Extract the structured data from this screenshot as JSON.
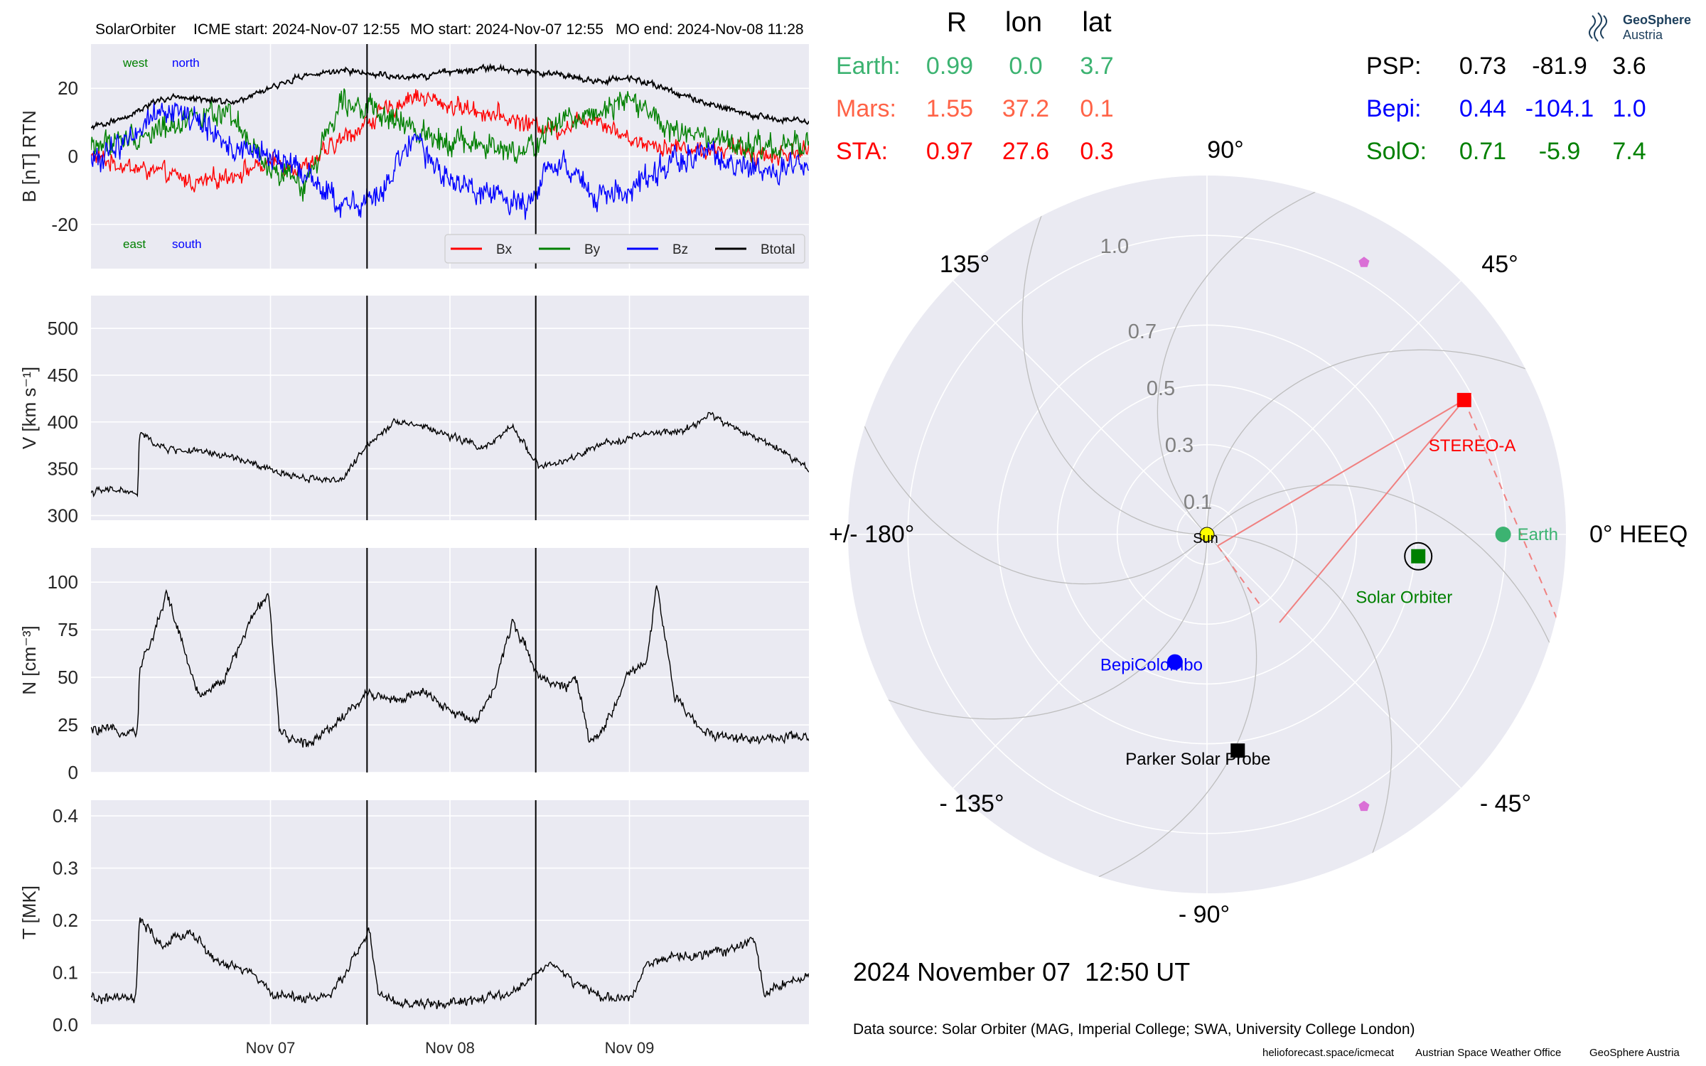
{
  "header": {
    "spacecraft": "SolarOrbiter",
    "icme_start": "ICME start: 2024-Nov-07 12:55",
    "mo_start": "MO start: 2024-Nov-07 12:55",
    "mo_end": "MO end: 2024-Nov-08 11:28"
  },
  "logo": {
    "line1": "GeoSphere",
    "line2": "Austria"
  },
  "positions": {
    "columns": [
      "R",
      "lon",
      "lat"
    ],
    "left": [
      {
        "name": "Earth:",
        "R": "0.99",
        "lon": "0.0",
        "lat": "3.7",
        "color": "#3cb371"
      },
      {
        "name": "Mars:",
        "R": "1.55",
        "lon": "37.2",
        "lat": "0.1",
        "color": "#ff6347"
      },
      {
        "name": "STA:",
        "R": "0.97",
        "lon": "27.6",
        "lat": "0.3",
        "color": "#ff0000"
      }
    ],
    "right": [
      {
        "name": "PSP:",
        "R": "0.73",
        "lon": "-81.9",
        "lat": "3.6",
        "color": "#000000"
      },
      {
        "name": "Bepi:",
        "R": "0.44",
        "lon": "-104.1",
        "lat": "1.0",
        "color": "#0000ff"
      },
      {
        "name": "SolO:",
        "R": "0.71",
        "lon": "-5.9",
        "lat": "7.4",
        "color": "#008000"
      }
    ]
  },
  "date_label": "2024 November 07  12:50 UT",
  "data_source": "Data source: Solar Orbiter (MAG, Imperial College; SWA, University College London)",
  "credits": [
    "helioforecast.space/icmecat",
    "Austrian Space Weather Office",
    "GeoSphere Austria"
  ],
  "chart_data": [
    {
      "type": "line",
      "panel": "magnetic_field",
      "ylabel": "B [nT] RTN",
      "ylim": [
        -33,
        33
      ],
      "yticks": [
        -20,
        0,
        20
      ],
      "xlim_days": [
        6.0,
        10.0
      ],
      "xtick_positions_days": [
        7,
        8,
        9
      ],
      "xtick_labels": [
        "Nov 07",
        "Nov 08",
        "Nov 09"
      ],
      "vlines_days": [
        7.538,
        8.478
      ],
      "grid": true,
      "legend": "bottom-right",
      "annotations": {
        "top_left": "west",
        "top_right": "north",
        "bottom_left": "east",
        "bottom_right": "south"
      },
      "x_days": [
        6.0,
        6.2,
        6.4,
        6.6,
        6.8,
        7.0,
        7.2,
        7.4,
        7.6,
        7.8,
        8.0,
        8.2,
        8.4,
        8.6,
        8.8,
        9.0,
        9.2,
        9.4,
        9.6,
        9.8,
        10.0
      ],
      "series": [
        {
          "name": "Bx",
          "color": "#ff0000",
          "noise": 3.5,
          "values": [
            0,
            -3,
            -5,
            -8,
            -5,
            -2,
            -3,
            5,
            12,
            18,
            15,
            13,
            10,
            8,
            12,
            5,
            3,
            2,
            2,
            0,
            2
          ]
        },
        {
          "name": "By",
          "color": "#008000",
          "noise": 5,
          "values": [
            3,
            5,
            8,
            13,
            10,
            -5,
            -8,
            18,
            12,
            8,
            5,
            3,
            0,
            10,
            13,
            18,
            8,
            5,
            3,
            2,
            4
          ]
        },
        {
          "name": "Bz",
          "color": "#0000ff",
          "noise": 5,
          "values": [
            -2,
            5,
            15,
            10,
            2,
            0,
            -5,
            -15,
            -12,
            5,
            -8,
            -10,
            -15,
            0,
            -12,
            -10,
            -3,
            2,
            -3,
            -5,
            -3
          ]
        },
        {
          "name": "Btotal",
          "color": "#000000",
          "noise": 1.2,
          "values": [
            8,
            12,
            17,
            17,
            16,
            20,
            24,
            25,
            24,
            23,
            25,
            26,
            25,
            24,
            22,
            23,
            20,
            16,
            13,
            11,
            10
          ]
        }
      ]
    },
    {
      "type": "line",
      "panel": "velocity",
      "ylabel": "V [km s⁻¹]",
      "ylim": [
        295,
        535
      ],
      "yticks": [
        300,
        350,
        400,
        450,
        500
      ],
      "xlim_days": [
        6.0,
        10.0
      ],
      "xtick_positions_days": [
        7,
        8,
        9
      ],
      "vlines_days": [
        7.538,
        8.478
      ],
      "grid": true,
      "x_days": [
        6.0,
        6.15,
        6.26,
        6.27,
        6.4,
        6.6,
        6.8,
        7.0,
        7.2,
        7.4,
        7.55,
        7.7,
        7.85,
        8.0,
        8.2,
        8.35,
        8.5,
        8.65,
        8.8,
        9.0,
        9.15,
        9.3,
        9.45,
        9.6,
        9.8,
        10.0
      ],
      "series": [
        {
          "name": "V",
          "color": "#000000",
          "noise": 5,
          "values": [
            325,
            328,
            322,
            388,
            372,
            368,
            362,
            348,
            340,
            338,
            378,
            402,
            395,
            385,
            372,
            395,
            352,
            358,
            372,
            384,
            388,
            390,
            408,
            392,
            375,
            350
          ]
        }
      ]
    },
    {
      "type": "line",
      "panel": "density",
      "ylabel": "N [cm⁻³]",
      "ylim": [
        0,
        118
      ],
      "yticks": [
        0,
        25,
        50,
        75,
        100
      ],
      "xlim_days": [
        6.0,
        10.0
      ],
      "xtick_positions_days": [
        7,
        8,
        9
      ],
      "vlines_days": [
        7.538,
        8.478
      ],
      "grid": true,
      "x_days": [
        6.0,
        6.26,
        6.27,
        6.35,
        6.42,
        6.5,
        6.6,
        6.75,
        6.9,
        6.99,
        7.05,
        7.2,
        7.35,
        7.55,
        7.7,
        7.85,
        8.0,
        8.15,
        8.25,
        8.35,
        8.5,
        8.65,
        8.7,
        8.78,
        8.85,
        9.0,
        9.1,
        9.15,
        9.25,
        9.4,
        9.6,
        9.8,
        10.0
      ],
      "series": [
        {
          "name": "N",
          "color": "#000000",
          "noise": 3.5,
          "values": [
            22,
            22,
            55,
            72,
            95,
            70,
            40,
            50,
            82,
            95,
            20,
            15,
            25,
            42,
            38,
            42,
            32,
            28,
            45,
            80,
            50,
            45,
            50,
            15,
            22,
            52,
            58,
            100,
            40,
            22,
            18,
            18,
            18
          ]
        }
      ]
    },
    {
      "type": "line",
      "panel": "temperature",
      "ylabel": "T [MK]",
      "ylim": [
        0,
        0.43
      ],
      "yticks": [
        0.0,
        0.1,
        0.2,
        0.3,
        0.4
      ],
      "xlim_days": [
        6.0,
        10.0
      ],
      "xtick_positions_days": [
        7,
        8,
        9
      ],
      "xtick_labels": [
        "Nov 07",
        "Nov 08",
        "Nov 09"
      ],
      "vlines_days": [
        7.538,
        8.478
      ],
      "grid": true,
      "x_days": [
        6.0,
        6.25,
        6.27,
        6.4,
        6.55,
        6.7,
        6.9,
        7.0,
        7.2,
        7.35,
        7.45,
        7.55,
        7.6,
        7.7,
        8.0,
        8.2,
        8.35,
        8.45,
        8.55,
        8.7,
        8.85,
        9.0,
        9.1,
        9.3,
        9.5,
        9.7,
        9.75,
        9.85,
        10.0
      ],
      "series": [
        {
          "name": "T",
          "color": "#000000",
          "noise": 0.012,
          "values": [
            0.05,
            0.05,
            0.2,
            0.15,
            0.18,
            0.12,
            0.1,
            0.06,
            0.05,
            0.06,
            0.12,
            0.18,
            0.06,
            0.04,
            0.04,
            0.05,
            0.06,
            0.09,
            0.12,
            0.08,
            0.05,
            0.05,
            0.12,
            0.13,
            0.14,
            0.16,
            0.06,
            0.08,
            0.09
          ]
        }
      ]
    },
    {
      "type": "polar",
      "panel": "orbit_positions",
      "frame_label_0": "0° HEEQ",
      "angle_labels": [
        {
          "deg": 90,
          "text": "90°"
        },
        {
          "deg": 45,
          "text": "45°"
        },
        {
          "deg": 135,
          "text": "135°"
        },
        {
          "deg": 180,
          "text": "+/- 180°"
        },
        {
          "deg": 0,
          "text": "0° HEEQ"
        },
        {
          "deg": -45,
          "text": "- 45°"
        },
        {
          "deg": -90,
          "text": "- 90°"
        },
        {
          "deg": -135,
          "text": "- 135°"
        }
      ],
      "radial_labels": [
        "0.1",
        "0.3",
        "0.5",
        "0.7",
        "1.0"
      ],
      "radial_values": [
        0.1,
        0.3,
        0.5,
        0.7,
        1.0
      ],
      "rmax": 1.2,
      "bodies": [
        {
          "name": "Sun",
          "r": 0.0,
          "lon": 0,
          "color": "#ffff00",
          "marker": "circle"
        },
        {
          "name": "Earth",
          "r": 0.99,
          "lon": 0.0,
          "color": "#3cb371",
          "marker": "circle"
        },
        {
          "name": "STEREO-A",
          "r": 0.97,
          "lon": 27.6,
          "color": "#ff0000",
          "marker": "square"
        },
        {
          "name": "Solar Orbiter",
          "r": 0.71,
          "lon": -5.9,
          "color": "#008000",
          "marker": "square"
        },
        {
          "name": "BepiColombo",
          "r": 0.44,
          "lon": -104.1,
          "color": "#0000ff",
          "marker": "circle"
        },
        {
          "name": "Parker Solar Probe",
          "r": 0.73,
          "lon": -81.9,
          "color": "#000000",
          "marker": "square"
        },
        {
          "name": "",
          "r": 1.05,
          "lon": 60,
          "color": "#da70d6",
          "marker": "pentagon"
        },
        {
          "name": "",
          "r": 1.05,
          "lon": -60,
          "color": "#da70d6",
          "marker": "pentagon"
        }
      ]
    }
  ]
}
